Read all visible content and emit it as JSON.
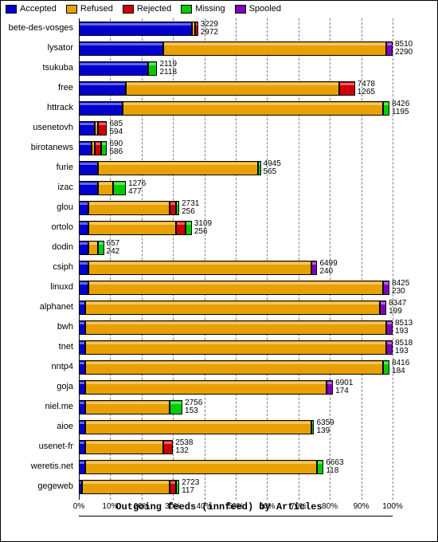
{
  "chart": {
    "type": "stacked-horizontal-bar",
    "xaxis_title": "Outgoing feeds (innfeed) by Articles",
    "background_color": "#ffffff",
    "grid_color": "#808080",
    "xlim": [
      0,
      100
    ],
    "xtick_step": 10,
    "xtick_suffix": "%",
    "label_fontsize": 11,
    "value_fontsize": 10,
    "colors": {
      "Accepted": "#0000cc",
      "Refused": "#e8a000",
      "Rejected": "#cc0000",
      "Missing": "#00cc00",
      "Spooled": "#8000c0"
    },
    "legend": [
      "Accepted",
      "Refused",
      "Rejected",
      "Missing",
      "Spooled"
    ],
    "rows": [
      {
        "name": "bete-des-vosges",
        "segs": [
          {
            "k": "Accepted",
            "p": 36
          },
          {
            "k": "Refused",
            "p": 1
          },
          {
            "k": "Rejected",
            "p": 1
          }
        ],
        "top": 3229,
        "bot": 2972
      },
      {
        "name": "lysator",
        "segs": [
          {
            "k": "Accepted",
            "p": 27
          },
          {
            "k": "Refused",
            "p": 71
          },
          {
            "k": "Spooled",
            "p": 2
          }
        ],
        "top": 8510,
        "bot": 2290
      },
      {
        "name": "tsukuba",
        "segs": [
          {
            "k": "Accepted",
            "p": 22
          },
          {
            "k": "Missing",
            "p": 3
          }
        ],
        "top": 2119,
        "bot": 2118
      },
      {
        "name": "free",
        "segs": [
          {
            "k": "Accepted",
            "p": 15
          },
          {
            "k": "Refused",
            "p": 68
          },
          {
            "k": "Rejected",
            "p": 5
          }
        ],
        "top": 7478,
        "bot": 1265
      },
      {
        "name": "httrack",
        "segs": [
          {
            "k": "Accepted",
            "p": 14
          },
          {
            "k": "Refused",
            "p": 83
          },
          {
            "k": "Missing",
            "p": 2
          }
        ],
        "top": 8426,
        "bot": 1195
      },
      {
        "name": "usenetovh",
        "segs": [
          {
            "k": "Accepted",
            "p": 5
          },
          {
            "k": "Refused",
            "p": 1
          },
          {
            "k": "Rejected",
            "p": 3
          }
        ],
        "top": 685,
        "bot": 594
      },
      {
        "name": "birotanews",
        "segs": [
          {
            "k": "Accepted",
            "p": 4
          },
          {
            "k": "Refused",
            "p": 1
          },
          {
            "k": "Rejected",
            "p": 2
          },
          {
            "k": "Missing",
            "p": 2
          }
        ],
        "top": 690,
        "bot": 586
      },
      {
        "name": "furie",
        "segs": [
          {
            "k": "Accepted",
            "p": 6
          },
          {
            "k": "Refused",
            "p": 51
          },
          {
            "k": "Missing",
            "p": 1
          }
        ],
        "top": 4945,
        "bot": 565
      },
      {
        "name": "izac",
        "segs": [
          {
            "k": "Accepted",
            "p": 6
          },
          {
            "k": "Refused",
            "p": 5
          },
          {
            "k": "Missing",
            "p": 4
          }
        ],
        "top": 1276,
        "bot": 477
      },
      {
        "name": "glou",
        "segs": [
          {
            "k": "Accepted",
            "p": 3
          },
          {
            "k": "Refused",
            "p": 26
          },
          {
            "k": "Rejected",
            "p": 2
          },
          {
            "k": "Missing",
            "p": 1
          }
        ],
        "top": 2731,
        "bot": 256
      },
      {
        "name": "ortolo",
        "segs": [
          {
            "k": "Accepted",
            "p": 3
          },
          {
            "k": "Refused",
            "p": 28
          },
          {
            "k": "Rejected",
            "p": 3
          },
          {
            "k": "Missing",
            "p": 2
          }
        ],
        "top": 3109,
        "bot": 256
      },
      {
        "name": "dodin",
        "segs": [
          {
            "k": "Accepted",
            "p": 3
          },
          {
            "k": "Refused",
            "p": 3
          },
          {
            "k": "Missing",
            "p": 2
          }
        ],
        "top": 657,
        "bot": 242
      },
      {
        "name": "csiph",
        "segs": [
          {
            "k": "Accepted",
            "p": 3
          },
          {
            "k": "Refused",
            "p": 71
          },
          {
            "k": "Spooled",
            "p": 2
          }
        ],
        "top": 6499,
        "bot": 240
      },
      {
        "name": "linuxd",
        "segs": [
          {
            "k": "Accepted",
            "p": 3
          },
          {
            "k": "Refused",
            "p": 94
          },
          {
            "k": "Spooled",
            "p": 2
          }
        ],
        "top": 8425,
        "bot": 230
      },
      {
        "name": "alphanet",
        "segs": [
          {
            "k": "Accepted",
            "p": 2
          },
          {
            "k": "Refused",
            "p": 94
          },
          {
            "k": "Spooled",
            "p": 2
          }
        ],
        "top": 8347,
        "bot": 199
      },
      {
        "name": "bwh",
        "segs": [
          {
            "k": "Accepted",
            "p": 2
          },
          {
            "k": "Refused",
            "p": 96
          },
          {
            "k": "Spooled",
            "p": 2
          }
        ],
        "top": 8513,
        "bot": 193
      },
      {
        "name": "tnet",
        "segs": [
          {
            "k": "Accepted",
            "p": 2
          },
          {
            "k": "Refused",
            "p": 96
          },
          {
            "k": "Spooled",
            "p": 2
          }
        ],
        "top": 8518,
        "bot": 193
      },
      {
        "name": "nntp4",
        "segs": [
          {
            "k": "Accepted",
            "p": 2
          },
          {
            "k": "Refused",
            "p": 95
          },
          {
            "k": "Missing",
            "p": 2
          }
        ],
        "top": 8416,
        "bot": 184
      },
      {
        "name": "goja",
        "segs": [
          {
            "k": "Accepted",
            "p": 2
          },
          {
            "k": "Refused",
            "p": 77
          },
          {
            "k": "Spooled",
            "p": 2
          }
        ],
        "top": 6901,
        "bot": 174
      },
      {
        "name": "niel.me",
        "segs": [
          {
            "k": "Accepted",
            "p": 2
          },
          {
            "k": "Refused",
            "p": 27
          },
          {
            "k": "Missing",
            "p": 4
          }
        ],
        "top": 2756,
        "bot": 153
      },
      {
        "name": "aioe",
        "segs": [
          {
            "k": "Accepted",
            "p": 2
          },
          {
            "k": "Refused",
            "p": 72
          },
          {
            "k": "Missing",
            "p": 1
          }
        ],
        "top": 6359,
        "bot": 139
      },
      {
        "name": "usenet-fr",
        "segs": [
          {
            "k": "Accepted",
            "p": 2
          },
          {
            "k": "Refused",
            "p": 25
          },
          {
            "k": "Rejected",
            "p": 3
          }
        ],
        "top": 2538,
        "bot": 132
      },
      {
        "name": "weretis.net",
        "segs": [
          {
            "k": "Accepted",
            "p": 2
          },
          {
            "k": "Refused",
            "p": 74
          },
          {
            "k": "Missing",
            "p": 2
          }
        ],
        "top": 6663,
        "bot": 118
      },
      {
        "name": "gegeweb",
        "segs": [
          {
            "k": "Accepted",
            "p": 1
          },
          {
            "k": "Refused",
            "p": 28
          },
          {
            "k": "Rejected",
            "p": 2
          },
          {
            "k": "Missing",
            "p": 1
          }
        ],
        "top": 2723,
        "bot": 117
      }
    ]
  }
}
